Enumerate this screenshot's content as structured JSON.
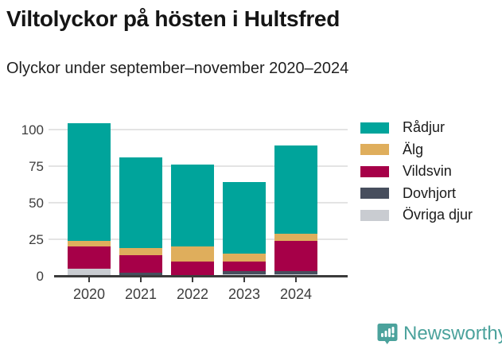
{
  "header": {
    "title": "Viltolyckor på hösten i Hultsfred",
    "subtitle": "Olyckor under september–november 2020–2024"
  },
  "chart_data": {
    "type": "bar",
    "stacked": true,
    "title": "Viltolyckor på hösten i Hultsfred",
    "subtitle": "Olyckor under september–november 2020–2024",
    "categories": [
      "2020",
      "2021",
      "2022",
      "2023",
      "2024"
    ],
    "series": [
      {
        "name": "Rådjur",
        "color": "#00a49b",
        "values": [
          80,
          62,
          56,
          49,
          60
        ]
      },
      {
        "name": "Älg",
        "color": "#dfae5c",
        "values": [
          4,
          5,
          10,
          5,
          5
        ]
      },
      {
        "name": "Vildsvin",
        "color": "#a60048",
        "values": [
          15,
          12,
          10,
          7,
          21
        ]
      },
      {
        "name": "Dovhjort",
        "color": "#474e5d",
        "values": [
          0,
          2,
          0,
          2,
          2
        ]
      },
      {
        "name": "Övriga djur",
        "color": "#c9ccd1",
        "values": [
          5,
          0,
          0,
          1,
          1
        ]
      }
    ],
    "stack_order_bottom_to_top": [
      "Övriga djur",
      "Dovhjort",
      "Vildsvin",
      "Älg",
      "Rådjur"
    ],
    "totals": [
      104,
      81,
      76,
      64,
      89
    ],
    "y_ticks": [
      0,
      25,
      50,
      75,
      100
    ],
    "ylim": [
      0,
      106
    ],
    "xlabel": "",
    "ylabel": "",
    "grid": true,
    "legend_position": "right"
  },
  "footer": {
    "brand": "Newsworthy",
    "logo_icon": "newsworthy-speech-bubble-bar-chart-icon",
    "brand_color": "#4ba29c"
  },
  "colors": {
    "background": "#ffffff",
    "gridline": "#e4e4e4",
    "axis": "#3b3b3b",
    "tick_text": "#3d3d3d",
    "title_text": "#151515"
  }
}
